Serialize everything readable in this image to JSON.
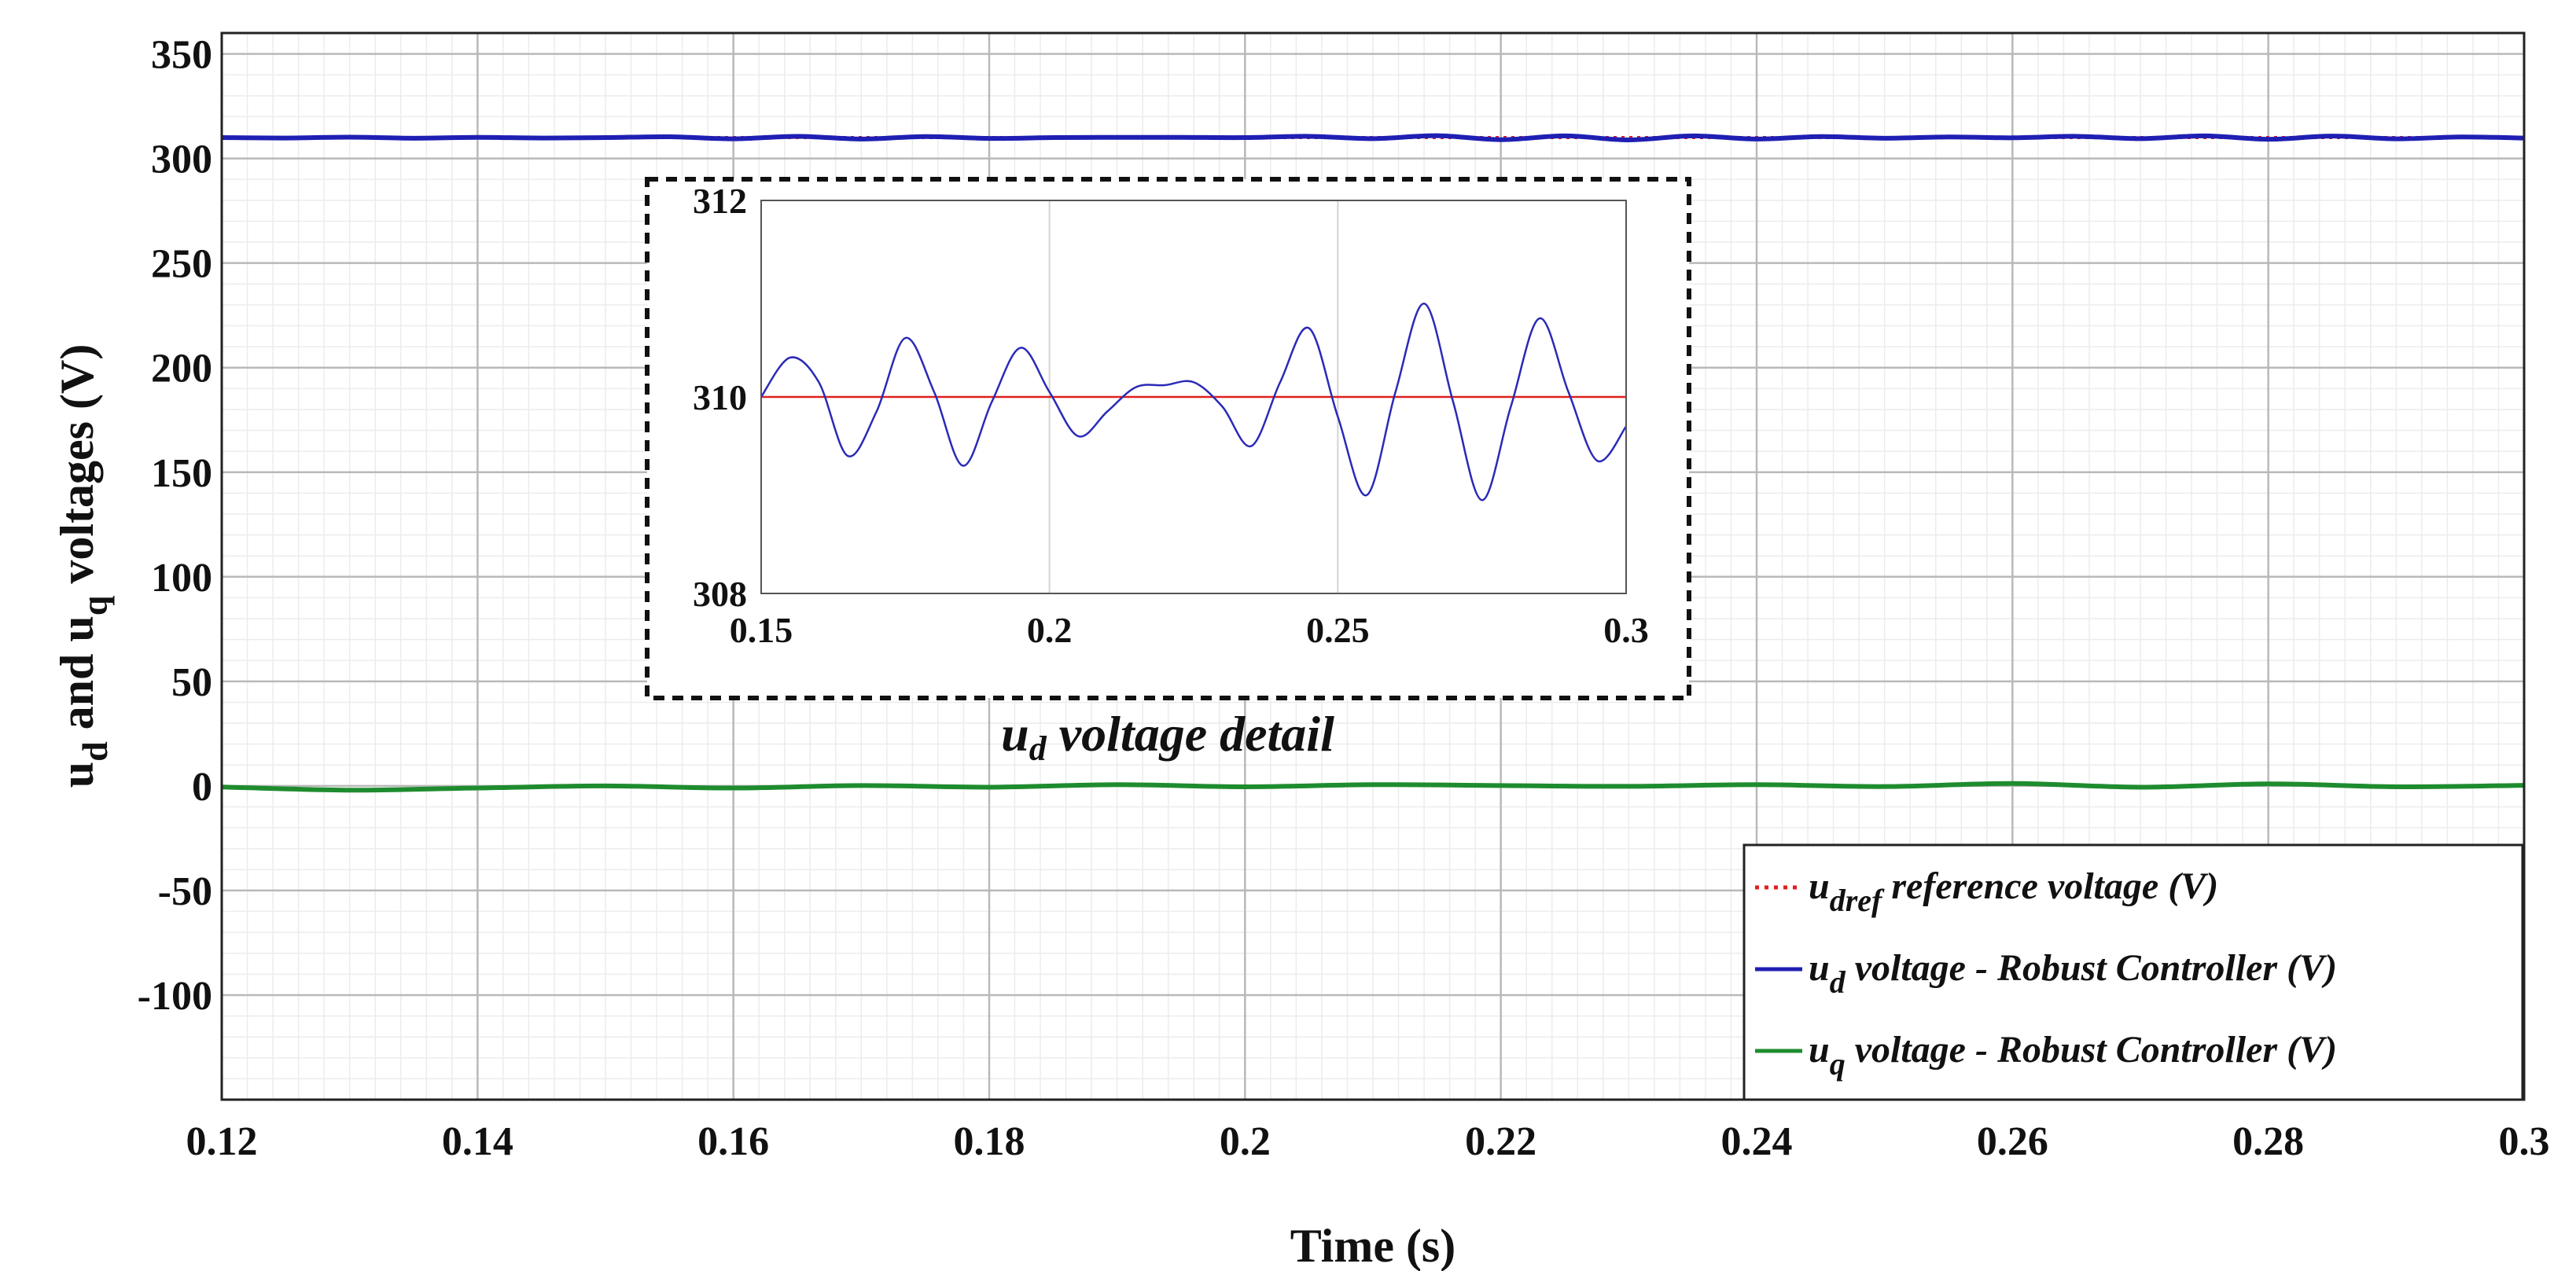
{
  "chart_data": [
    {
      "type": "line",
      "title": "",
      "xlabel": "Time (s)",
      "ylabel": "u_d and u_q voltages (V)",
      "ylabel_parts": {
        "u1": "u",
        "sub1": "d",
        "mid": " and ",
        "u2": "u",
        "sub2": "q",
        "end": " voltages (V)"
      },
      "xlim": [
        0.12,
        0.3
      ],
      "ylim": [
        -150,
        360
      ],
      "x_ticks": [
        0.12,
        0.14,
        0.16,
        0.18,
        0.2,
        0.22,
        0.24,
        0.26,
        0.28,
        0.3
      ],
      "x_tick_labels": [
        "0.12",
        "0.14",
        "0.16",
        "0.18",
        "0.2",
        "0.22",
        "0.24",
        "0.26",
        "0.28",
        "0.3"
      ],
      "y_ticks": [
        350,
        300,
        250,
        200,
        150,
        100,
        50,
        0,
        -50,
        -100
      ],
      "y_tick_labels": [
        "350",
        "300",
        "250",
        "200",
        "150",
        "100",
        "50",
        "0",
        "-50",
        "-100"
      ],
      "grid": true,
      "minor_grid": true,
      "legend_position": "bottom-right",
      "series": [
        {
          "name": "u_dref reference voltage (V)",
          "legend": {
            "u": "u",
            "sub": "dref",
            "text": " reference voltage (V)"
          },
          "color": "#e0201e",
          "style": "dotted",
          "x": [
            0.12,
            0.3
          ],
          "values": [
            310,
            310
          ]
        },
        {
          "name": "u_d voltage - Robust Controller (V)",
          "legend": {
            "u": "u",
            "sub": "d",
            "text": " voltage - Robust Controller (V)"
          },
          "color": "#1f1fb4",
          "style": "solid",
          "x": [
            0.12,
            0.125,
            0.13,
            0.135,
            0.14,
            0.145,
            0.15,
            0.155,
            0.16,
            0.165,
            0.17,
            0.175,
            0.18,
            0.185,
            0.19,
            0.195,
            0.2,
            0.205,
            0.21,
            0.215,
            0.22,
            0.225,
            0.23,
            0.235,
            0.24,
            0.245,
            0.25,
            0.255,
            0.26,
            0.265,
            0.27,
            0.275,
            0.28,
            0.285,
            0.29,
            0.295,
            0.3
          ],
          "values": [
            310.0,
            309.8,
            310.2,
            309.7,
            310.1,
            309.8,
            310.0,
            310.4,
            309.4,
            310.6,
            309.3,
            310.5,
            309.6,
            310.0,
            310.1,
            310.1,
            310.0,
            310.6,
            309.5,
            310.9,
            309.0,
            310.8,
            308.9,
            310.8,
            309.3,
            310.5,
            309.7,
            310.3,
            309.9,
            310.6,
            309.5,
            310.8,
            309.2,
            310.7,
            309.4,
            310.3,
            309.8
          ]
        },
        {
          "name": "u_q voltage - Robust Controller (V)",
          "legend": {
            "u": "u",
            "sub": "q",
            "text": " voltage - Robust Controller (V)"
          },
          "color": "#1e8c2e",
          "style": "solid",
          "x": [
            0.12,
            0.13,
            0.14,
            0.15,
            0.16,
            0.17,
            0.18,
            0.19,
            0.2,
            0.21,
            0.22,
            0.23,
            0.24,
            0.25,
            0.26,
            0.27,
            0.28,
            0.29,
            0.3
          ],
          "values": [
            -0.5,
            -2.0,
            -1.0,
            0.0,
            -1.0,
            0.2,
            -0.6,
            0.6,
            -0.4,
            0.6,
            0.2,
            -0.2,
            0.6,
            -0.3,
            1.2,
            -0.6,
            1.0,
            -0.4,
            0.3
          ]
        }
      ]
    },
    {
      "type": "line",
      "title": "u_d voltage detail",
      "caption_parts": {
        "u": "u",
        "sub": "d",
        "text": " voltage detail"
      },
      "xlim": [
        0.15,
        0.3
      ],
      "ylim": [
        308,
        312
      ],
      "x_ticks": [
        0.15,
        0.2,
        0.25,
        0.3
      ],
      "x_tick_labels": [
        "0.15",
        "0.2",
        "0.25",
        "0.3"
      ],
      "y_ticks": [
        312,
        310,
        308
      ],
      "y_tick_labels": [
        "312",
        "310",
        "308"
      ],
      "grid": true,
      "series": [
        {
          "name": "u_dref reference voltage (V)",
          "color": "#e0201e",
          "style": "solid",
          "x": [
            0.15,
            0.3
          ],
          "values": [
            310,
            310
          ]
        },
        {
          "name": "u_d voltage - Robust Controller (V)",
          "color": "#2a2ab8",
          "style": "solid",
          "x": [
            0.15,
            0.155,
            0.16,
            0.165,
            0.17,
            0.175,
            0.18,
            0.185,
            0.19,
            0.195,
            0.2,
            0.205,
            0.21,
            0.215,
            0.22,
            0.225,
            0.23,
            0.235,
            0.24,
            0.245,
            0.25,
            0.255,
            0.26,
            0.265,
            0.27,
            0.275,
            0.28,
            0.285,
            0.29,
            0.295,
            0.3
          ],
          "values": [
            310.0,
            310.4,
            310.15,
            309.4,
            309.85,
            310.6,
            310.05,
            309.3,
            309.95,
            310.5,
            310.05,
            309.6,
            309.85,
            310.1,
            310.12,
            310.15,
            309.9,
            309.5,
            310.15,
            310.7,
            309.8,
            309.0,
            310.05,
            310.95,
            309.95,
            308.95,
            309.9,
            310.8,
            310.05,
            309.35,
            309.7
          ]
        }
      ]
    }
  ]
}
